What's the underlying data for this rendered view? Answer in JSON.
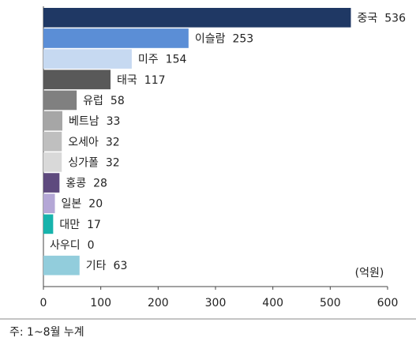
{
  "chart_data": {
    "type": "bar",
    "orientation": "horizontal",
    "categories": [
      "중국",
      "이슬람",
      "미주",
      "태국",
      "유럽",
      "베트남",
      "오세아",
      "싱가폴",
      "홍콩",
      "일본",
      "대만",
      "사우디",
      "기타"
    ],
    "values": [
      536,
      253,
      154,
      117,
      58,
      33,
      32,
      32,
      28,
      20,
      17,
      0,
      63
    ],
    "colors": [
      "#1f3864",
      "#5b8ed6",
      "#c6d9f1",
      "#595959",
      "#808080",
      "#a6a6a6",
      "#bfbfbf",
      "#d9d9d9",
      "#5e4a7e",
      "#b4a7d6",
      "#17b3ac",
      "#ffffff",
      "#92cddc"
    ],
    "unit_label": "(억원)",
    "xlim": [
      0,
      600
    ],
    "xticks": [
      0,
      100,
      200,
      300,
      400,
      500,
      600
    ],
    "footnote": "주: 1~8월 누계"
  }
}
